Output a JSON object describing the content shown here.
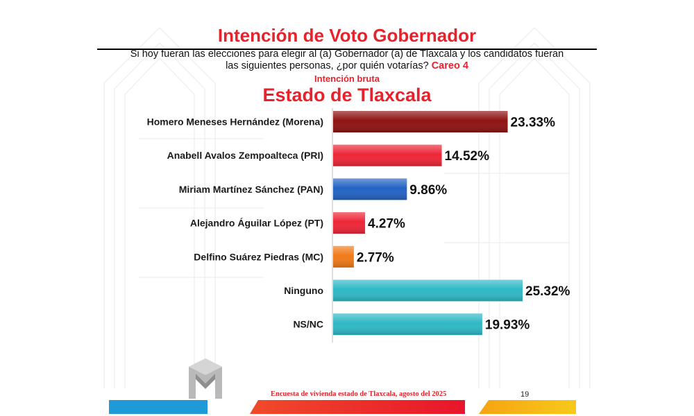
{
  "header": {
    "title": "Intención de Voto Gobernador",
    "question_line1": "Si hoy fueran las elecciones para elegir al (a) Gobernador (a) de Tlaxcala y los candidatos fueran",
    "question_line2": "las siguientes personas, ¿por quién votarías?",
    "careo": "Careo 4",
    "subtitle": "Intención bruta",
    "region": "Estado de Tlaxcala"
  },
  "chart_data": {
    "type": "bar",
    "orientation": "horizontal",
    "title": "Estado de Tlaxcala",
    "categories": [
      "Homero Meneses Hernández (Morena)",
      "Anabell Avalos Zempoalteca (PRI)",
      "Miriam Martínez Sánchez (PAN)",
      "Alejandro Águilar López (PT)",
      "Delfino Suárez Piedras (MC)",
      "Ninguno",
      "NS/NC"
    ],
    "values": [
      23.33,
      14.52,
      9.86,
      4.27,
      2.77,
      25.32,
      19.93
    ],
    "value_labels": [
      "23.33%",
      "14.52%",
      "9.86%",
      "4.27%",
      "2.77%",
      "25.32%",
      "19.93%"
    ],
    "colors": [
      "#8f1313",
      "#ee2637",
      "#2363c4",
      "#ee2637",
      "#f07a18",
      "#2fb8c6",
      "#2fb8c6"
    ],
    "xlim": [
      0,
      25.32
    ],
    "grid": false,
    "legend": "none"
  },
  "footer": {
    "survey": "Encuesta de vivienda estado de Tlaxcala, agosto del 2025",
    "page": "19"
  },
  "colors": {
    "accent": "#e8222c",
    "blue_strip": "#1e9ad6",
    "yellow_strip": "#f7c91a"
  }
}
